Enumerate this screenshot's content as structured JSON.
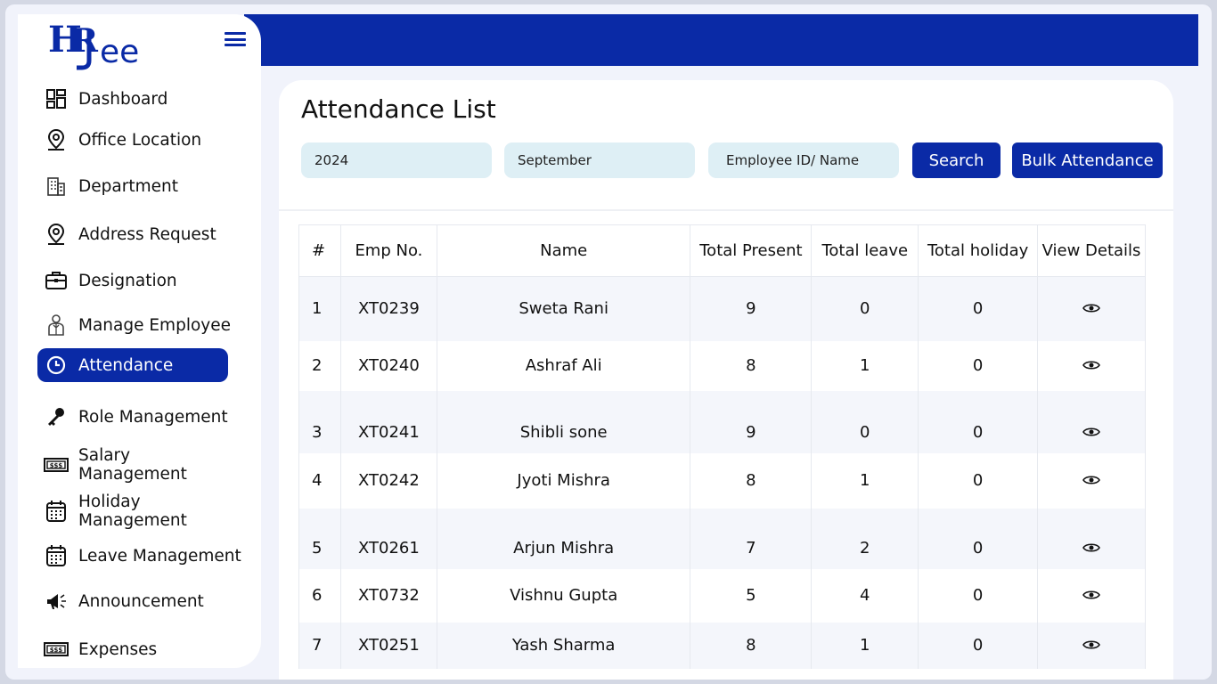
{
  "brand": {
    "logo_text": "HRJee"
  },
  "sidebar": {
    "items": [
      {
        "label": "Dashboard",
        "icon": "dashboard-icon"
      },
      {
        "label": "Office Location",
        "icon": "location-pin-icon"
      },
      {
        "label": "Department",
        "icon": "building-icon"
      },
      {
        "label": "Address Request",
        "icon": "location-pin-icon"
      },
      {
        "label": "Designation",
        "icon": "briefcase-icon"
      },
      {
        "label": "Manage Employee",
        "icon": "employee-icon"
      },
      {
        "label": "Attendance",
        "icon": "clock-icon",
        "active": true
      },
      {
        "label": "Role Management",
        "icon": "key-icon"
      },
      {
        "label": "Salary Management",
        "icon": "cash-icon"
      },
      {
        "label": "Holiday Management",
        "icon": "calendar-icon"
      },
      {
        "label": "Leave Management",
        "icon": "calendar-icon"
      },
      {
        "label": "Announcement",
        "icon": "megaphone-icon"
      },
      {
        "label": "Expenses",
        "icon": "cash-icon"
      }
    ]
  },
  "page": {
    "title": "Attendance List"
  },
  "filters": {
    "year": "2024",
    "month": "September",
    "employee_placeholder": "Employee ID/ Name",
    "search_label": "Search",
    "bulk_label": "Bulk Attendance"
  },
  "table": {
    "headers": [
      "#",
      "Emp No.",
      "Name",
      "Total Present",
      "Total leave",
      "Total holiday",
      "View Details"
    ],
    "rows": [
      {
        "idx": "1",
        "emp": "XT0239",
        "name": "Sweta Rani",
        "present": "9",
        "leave": "0",
        "holiday": "0"
      },
      {
        "idx": "2",
        "emp": "XT0240",
        "name": "Ashraf Ali",
        "present": "8",
        "leave": "1",
        "holiday": "0"
      },
      {
        "idx": "3",
        "emp": "XT0241",
        "name": "Shibli sone",
        "present": "9",
        "leave": "0",
        "holiday": "0"
      },
      {
        "idx": "4",
        "emp": "XT0242",
        "name": "Jyoti Mishra",
        "present": "8",
        "leave": "1",
        "holiday": "0"
      },
      {
        "idx": "5",
        "emp": "XT0261",
        "name": "Arjun Mishra",
        "present": "7",
        "leave": "2",
        "holiday": "0"
      },
      {
        "idx": "6",
        "emp": "XT0732",
        "name": "Vishnu Gupta",
        "present": "5",
        "leave": "4",
        "holiday": "0"
      },
      {
        "idx": "7",
        "emp": "XT0251",
        "name": "Yash Sharma",
        "present": "8",
        "leave": "1",
        "holiday": "0"
      }
    ]
  },
  "colors": {
    "primary": "#0a2aa6",
    "filter_bg": "#deeff5",
    "row_shade": "#f4f6fb"
  }
}
